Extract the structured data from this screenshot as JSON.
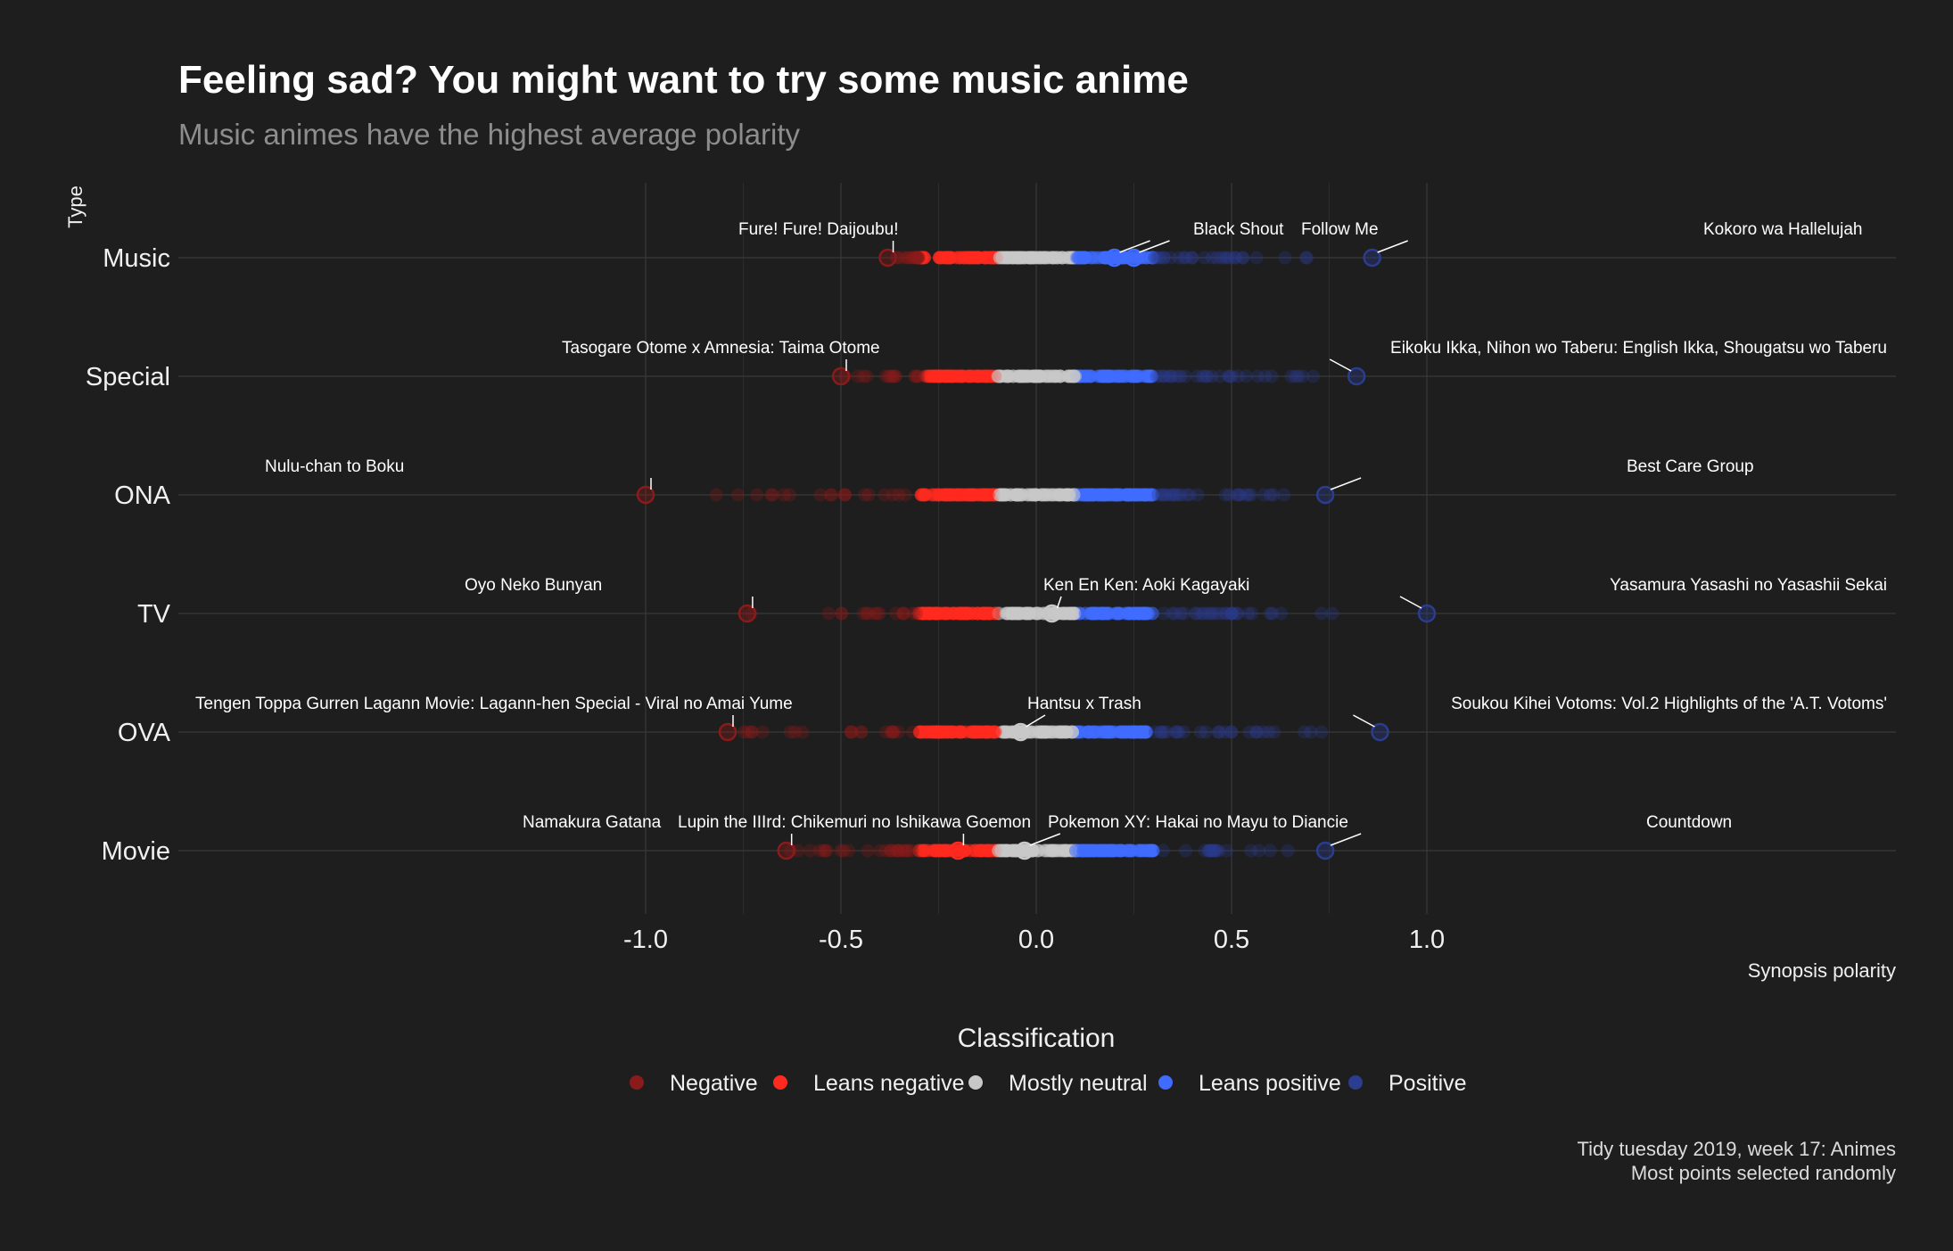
{
  "chart_data": {
    "type": "scatter",
    "title": "Feeling sad? You might want to try some music anime",
    "subtitle": "Music animes have the highest average polarity",
    "xlabel": "Synopsis polarity",
    "ylabel": "Type",
    "xlim": [
      -1.1,
      1.1
    ],
    "x_ticks": [
      "-1.0",
      "-0.5",
      "0.0",
      "0.5",
      "1.0"
    ],
    "x_tick_values": [
      -1.0,
      -0.5,
      0.0,
      0.5,
      1.0
    ],
    "categories": [
      "Music",
      "Special",
      "ONA",
      "TV",
      "OVA",
      "Movie"
    ],
    "grid": true,
    "legend": {
      "title": "Classification",
      "position": "bottom",
      "items": [
        {
          "label": "Negative",
          "color": "#8b1a1a"
        },
        {
          "label": "Leans negative",
          "color": "#ff2a1f"
        },
        {
          "label": "Mostly neutral",
          "color": "#c8c8c8"
        },
        {
          "label": "Leans positive",
          "color": "#3f6bff"
        },
        {
          "label": "Positive",
          "color": "#2a3d8f"
        }
      ]
    },
    "classification_breaks": [
      -0.3,
      -0.1,
      0.1,
      0.3
    ],
    "point_extents": [
      {
        "category": "Music",
        "min": -0.38,
        "max": 0.86,
        "inner_min": -0.3,
        "inner_max": 0.3
      },
      {
        "category": "Special",
        "min": -0.5,
        "max": 0.82,
        "inner_min": -0.28,
        "inner_max": 0.3
      },
      {
        "category": "ONA",
        "min": -1.0,
        "max": 0.74,
        "inner_min": -0.3,
        "inner_max": 0.3
      },
      {
        "category": "TV",
        "min": -0.74,
        "max": 1.0,
        "inner_min": -0.3,
        "inner_max": 0.3
      },
      {
        "category": "OVA",
        "min": -0.79,
        "max": 0.88,
        "inner_min": -0.3,
        "inner_max": 0.3
      },
      {
        "category": "Movie",
        "min": -0.64,
        "max": 0.74,
        "inner_min": -0.3,
        "inner_max": 0.3
      }
    ],
    "annotations": [
      {
        "category": "Music",
        "label": "Fure! Fure! Daijoubu!",
        "x": -0.38
      },
      {
        "category": "Music",
        "label": "Black Shout",
        "x": 0.2
      },
      {
        "category": "Music",
        "label": "Follow Me",
        "x": 0.25
      },
      {
        "category": "Music",
        "label": "Kokoro wa Hallelujah",
        "x": 0.86
      },
      {
        "category": "Special",
        "label": "Tasogare Otome x Amnesia: Taima Otome",
        "x": -0.5
      },
      {
        "category": "Special",
        "label": "Eikoku Ikka, Nihon wo Taberu: English Ikka, Shougatsu wo Taberu",
        "x": 0.82
      },
      {
        "category": "ONA",
        "label": "Nulu-chan to Boku",
        "x": -1.0
      },
      {
        "category": "ONA",
        "label": "Best Care Group",
        "x": 0.74
      },
      {
        "category": "TV",
        "label": "Oyo Neko Bunyan",
        "x": -0.74
      },
      {
        "category": "TV",
        "label": "Ken En Ken: Aoki Kagayaki",
        "x": 0.04
      },
      {
        "category": "TV",
        "label": "Yasamura Yasashi no Yasashii Sekai",
        "x": 1.0
      },
      {
        "category": "OVA",
        "label": "Tengen Toppa Gurren Lagann Movie: Lagann-hen Special - Viral no Amai Yume",
        "x": -0.79
      },
      {
        "category": "OVA",
        "label": "Hantsu x Trash",
        "x": -0.04
      },
      {
        "category": "OVA",
        "label": "Soukou Kihei Votoms: Vol.2 Highlights of the 'A.T. Votoms'",
        "x": 0.88
      },
      {
        "category": "Movie",
        "label": "Namakura Gatana",
        "x": -0.64
      },
      {
        "category": "Movie",
        "label": "Lupin the IIIrd: Chikemuri no Ishikawa Goemon",
        "x": -0.2
      },
      {
        "category": "Movie",
        "label": "Pokemon XY: Hakai no Mayu to Diancie",
        "x": -0.03
      },
      {
        "category": "Movie",
        "label": "Countdown",
        "x": 0.74
      }
    ],
    "caption_lines": [
      "Tidy tuesday 2019, week 17: Animes",
      "Most points selected randomly"
    ]
  }
}
